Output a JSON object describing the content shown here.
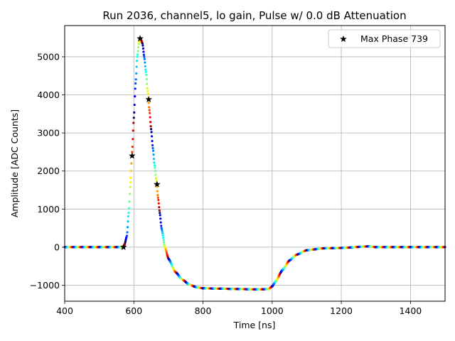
{
  "chart_data": {
    "type": "scatter",
    "title": "Run 2036, channel5, lo gain, Pulse w/ 0.0 dB Attenuation",
    "xlabel": "Time [ns]",
    "ylabel": "Amplitude [ADC Counts]",
    "xlim": [
      400,
      1500
    ],
    "ylim": [
      -1420,
      5820
    ],
    "xticks": [
      400,
      600,
      800,
      1000,
      1200,
      1400
    ],
    "yticks": [
      -1000,
      0,
      1000,
      2000,
      3000,
      4000,
      5000
    ],
    "grid": true,
    "legend": {
      "placement": "top-right",
      "entries": [
        "Max Phase 739"
      ]
    },
    "colormap": "jet",
    "series": [
      {
        "name": "Max Phase 739",
        "marker": "star",
        "color": "#000000",
        "points": [
          [
            570,
            0
          ],
          [
            595,
            2400
          ],
          [
            618,
            5480
          ],
          [
            643,
            3880
          ],
          [
            667,
            1650
          ]
        ]
      }
    ],
    "waveform": {
      "marker": "dot",
      "x_start": 400,
      "x_end": 1500,
      "x_step": 1,
      "color_period": 25,
      "profile": [
        [
          400,
          0
        ],
        [
          560,
          0
        ],
        [
          572,
          30
        ],
        [
          580,
          300
        ],
        [
          585,
          900
        ],
        [
          590,
          1700
        ],
        [
          595,
          2500
        ],
        [
          600,
          3400
        ],
        [
          605,
          4300
        ],
        [
          610,
          5000
        ],
        [
          615,
          5400
        ],
        [
          620,
          5480
        ],
        [
          625,
          5350
        ],
        [
          630,
          5000
        ],
        [
          635,
          4600
        ],
        [
          640,
          4100
        ],
        [
          645,
          3600
        ],
        [
          650,
          3100
        ],
        [
          655,
          2600
        ],
        [
          660,
          2150
        ],
        [
          665,
          1750
        ],
        [
          670,
          1300
        ],
        [
          675,
          900
        ],
        [
          680,
          500
        ],
        [
          690,
          0
        ],
        [
          700,
          -300
        ],
        [
          720,
          -650
        ],
        [
          740,
          -850
        ],
        [
          760,
          -980
        ],
        [
          780,
          -1050
        ],
        [
          800,
          -1080
        ],
        [
          850,
          -1090
        ],
        [
          900,
          -1100
        ],
        [
          960,
          -1110
        ],
        [
          990,
          -1100
        ],
        [
          1000,
          -1030
        ],
        [
          1010,
          -900
        ],
        [
          1030,
          -600
        ],
        [
          1050,
          -350
        ],
        [
          1070,
          -200
        ],
        [
          1100,
          -80
        ],
        [
          1150,
          -30
        ],
        [
          1200,
          -20
        ],
        [
          1280,
          20
        ],
        [
          1300,
          0
        ],
        [
          1500,
          0
        ]
      ]
    }
  }
}
